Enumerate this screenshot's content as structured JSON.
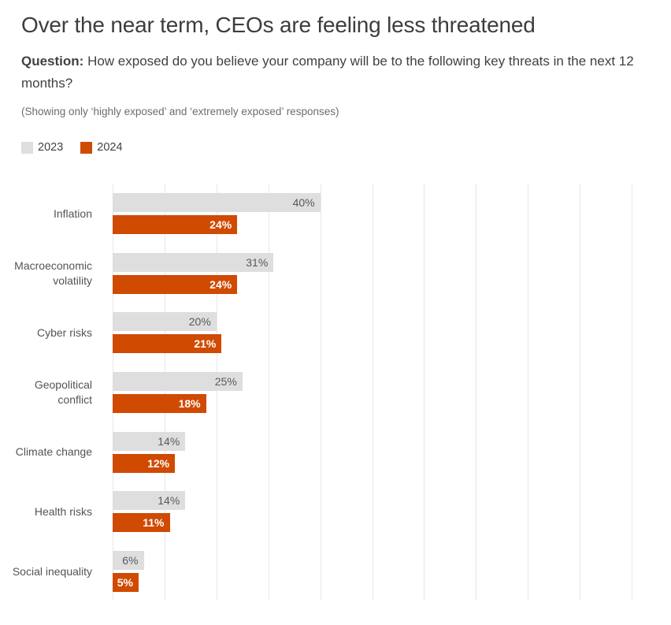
{
  "title": "Over the near term, CEOs are feeling less threatened",
  "subtitle": {
    "lead": "Question:",
    "text": " How exposed do you believe your company will be to the following key threats in the next 12 months?"
  },
  "note": "(Showing only ‘highly exposed’ and ‘extremely exposed’ responses)",
  "legend": {
    "items": [
      {
        "label": "2023",
        "color": "#dedede"
      },
      {
        "label": "2024",
        "color": "#d04a02"
      }
    ]
  },
  "colors": {
    "title": "#3d3d3d",
    "subtitle": "#414141",
    "note": "#6d6d6d",
    "category_label": "#545454",
    "gridline": "#e7e7e7",
    "bar_2023": "#dedede",
    "bar_2024": "#d04a02",
    "value_label_2023": "#58595b",
    "value_label_2024": "#ffffff"
  },
  "chart_data": {
    "type": "bar",
    "orientation": "horizontal",
    "title": "Over the near term, CEOs are feeling less threatened",
    "categories": [
      "Inflation",
      "Macroeconomic volatility",
      "Cyber risks",
      "Geopolitical conflict",
      "Climate change",
      "Health risks",
      "Social inequality"
    ],
    "series": [
      {
        "name": "2023",
        "color": "#dedede",
        "values": [
          40,
          31,
          20,
          25,
          14,
          14,
          6
        ]
      },
      {
        "name": "2024",
        "color": "#d04a02",
        "values": [
          24,
          24,
          21,
          18,
          12,
          11,
          5
        ]
      }
    ],
    "value_suffix": "%",
    "xlim": [
      0,
      100
    ],
    "gridline_step": 10,
    "grid": true,
    "legend_position": "top-left",
    "value_labels": "inside-end"
  }
}
